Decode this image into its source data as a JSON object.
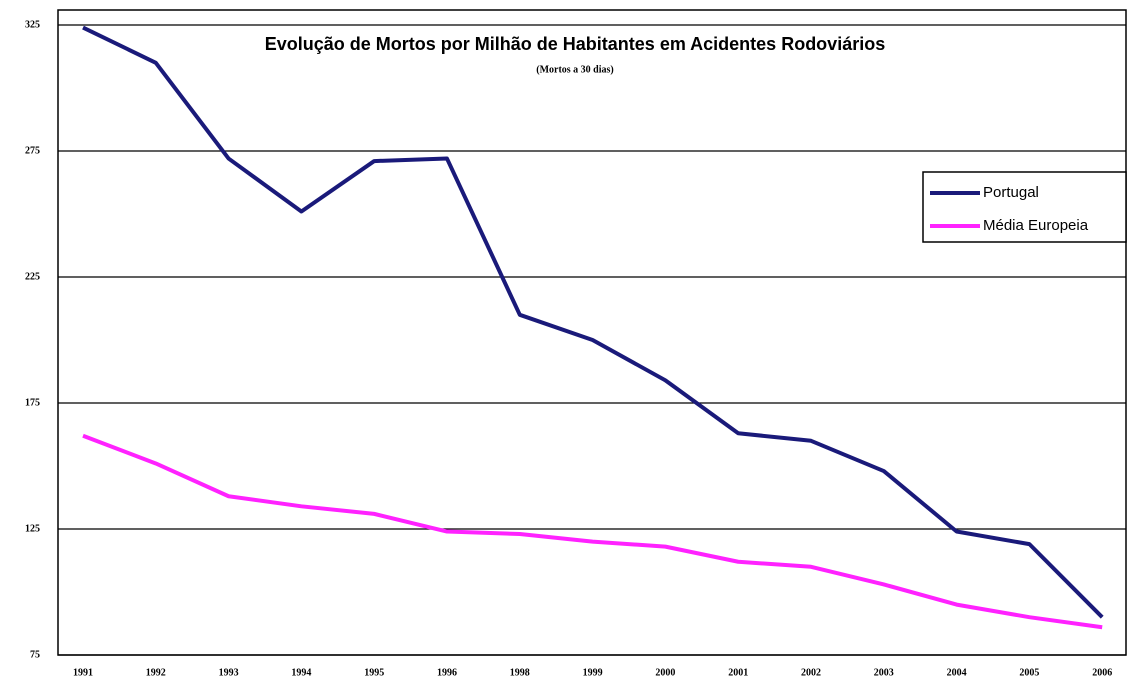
{
  "chart_data": {
    "type": "line",
    "title": "Evolução de Mortos por Milhão de Habitantes em Acidentes Rodoviários",
    "subtitle": "(Mortos a 30 dias)",
    "categories": [
      "1991",
      "1992",
      "1993",
      "1994",
      "1995",
      "1996",
      "1998",
      "1999",
      "2000",
      "2001",
      "2002",
      "2003",
      "2004",
      "2005",
      "2006"
    ],
    "series": [
      {
        "name": "Portugal",
        "color": "#1a1a7a",
        "values": [
          324,
          310,
          272,
          251,
          271,
          272,
          210,
          200,
          184,
          163,
          160,
          148,
          124,
          119,
          90
        ]
      },
      {
        "name": "Média Europeia",
        "color": "#ff22ff",
        "values": [
          162,
          151,
          138,
          134,
          131,
          124,
          123,
          120,
          118,
          112,
          110,
          103,
          95,
          90,
          86
        ]
      }
    ],
    "ylim": [
      75,
      325
    ],
    "yticks": [
      75,
      125,
      175,
      225,
      275,
      325
    ],
    "grid": true,
    "legend": "right"
  }
}
